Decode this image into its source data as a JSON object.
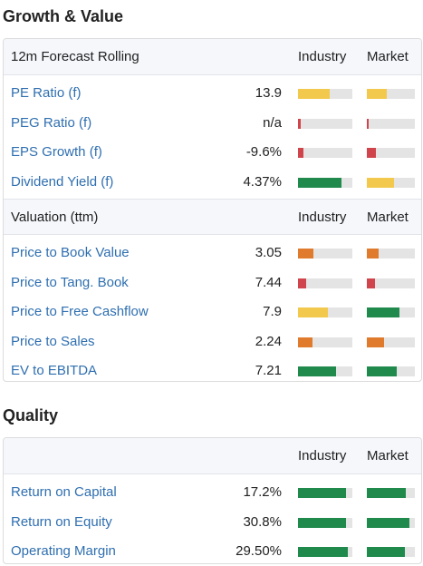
{
  "growth": {
    "title": "Growth & Value",
    "forecast_header": {
      "label": "12m Forecast Rolling",
      "industry": "Industry",
      "market": "Market"
    },
    "forecast_rows": [
      {
        "name": "PE Ratio (f)",
        "value": "13.9",
        "industry": {
          "pct": 0.58,
          "color": "#f2c94c"
        },
        "market": {
          "pct": 0.42,
          "color": "#f2c94c"
        }
      },
      {
        "name": "PEG Ratio (f)",
        "value": "n/a",
        "industry": {
          "pct": 0.05,
          "color": "#d0454c"
        },
        "market": {
          "pct": 0.04,
          "color": "#d0454c"
        }
      },
      {
        "name": "EPS Growth (f)",
        "value": "-9.6%",
        "industry": {
          "pct": 0.1,
          "color": "#d0454c"
        },
        "market": {
          "pct": 0.18,
          "color": "#d0454c"
        }
      },
      {
        "name": "Dividend Yield (f)",
        "value": "4.37%",
        "industry": {
          "pct": 0.8,
          "color": "#1f8a4c"
        },
        "market": {
          "pct": 0.56,
          "color": "#f2c94c"
        }
      }
    ],
    "valuation_header": {
      "label": "Valuation (ttm)",
      "industry": "Industry",
      "market": "Market"
    },
    "valuation_rows": [
      {
        "name": "Price to Book Value",
        "value": "3.05",
        "industry": {
          "pct": 0.28,
          "color": "#e07b2e"
        },
        "market": {
          "pct": 0.24,
          "color": "#e07b2e"
        }
      },
      {
        "name": "Price to Tang. Book",
        "value": "7.44",
        "industry": {
          "pct": 0.15,
          "color": "#d0454c"
        },
        "market": {
          "pct": 0.17,
          "color": "#d0454c"
        }
      },
      {
        "name": "Price to Free Cashflow",
        "value": "7.9",
        "industry": {
          "pct": 0.55,
          "color": "#f2c94c"
        },
        "market": {
          "pct": 0.68,
          "color": "#1f8a4c"
        }
      },
      {
        "name": "Price to Sales",
        "value": "2.24",
        "industry": {
          "pct": 0.27,
          "color": "#e07b2e"
        },
        "market": {
          "pct": 0.36,
          "color": "#e07b2e"
        }
      },
      {
        "name": "EV to EBITDA",
        "value": "7.21",
        "industry": {
          "pct": 0.7,
          "color": "#1f8a4c"
        },
        "market": {
          "pct": 0.62,
          "color": "#1f8a4c"
        }
      }
    ]
  },
  "quality": {
    "title": "Quality",
    "header": {
      "label": "",
      "industry": "Industry",
      "market": "Market"
    },
    "rows": [
      {
        "name": "Return on Capital",
        "value": "17.2%",
        "industry": {
          "pct": 0.88,
          "color": "#1f8a4c"
        },
        "market": {
          "pct": 0.82,
          "color": "#1f8a4c"
        }
      },
      {
        "name": "Return on Equity",
        "value": "30.8%",
        "industry": {
          "pct": 0.88,
          "color": "#1f8a4c"
        },
        "market": {
          "pct": 0.88,
          "color": "#1f8a4c"
        }
      },
      {
        "name": "Operating Margin",
        "value": "29.50%",
        "industry": {
          "pct": 0.92,
          "color": "#1f8a4c"
        },
        "market": {
          "pct": 0.8,
          "color": "#1f8a4c"
        }
      }
    ]
  }
}
